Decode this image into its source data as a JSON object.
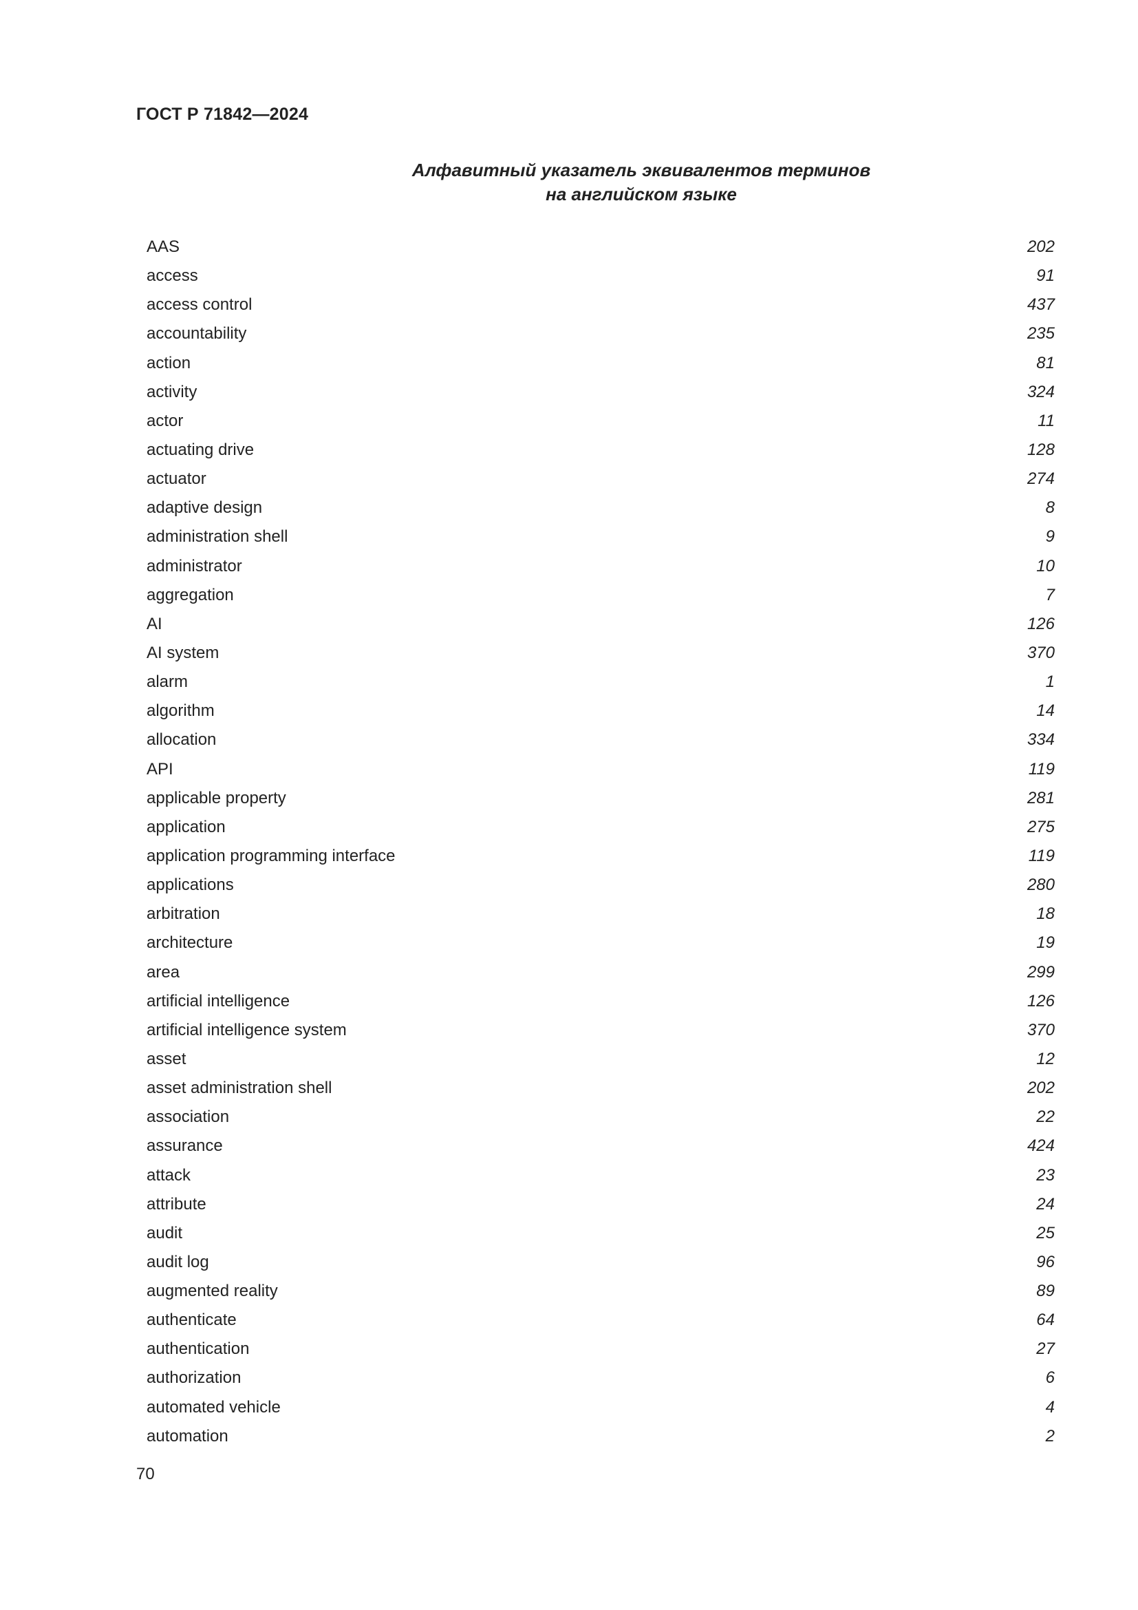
{
  "header": "ГОСТ Р 71842—2024",
  "title": [
    "Алфавитный указатель эквивалентов терминов",
    "на английском языке"
  ],
  "entries": [
    {
      "term": "AAS",
      "page": "202"
    },
    {
      "term": "access",
      "page": "91"
    },
    {
      "term": "access control",
      "page": "437"
    },
    {
      "term": "accountability",
      "page": "235"
    },
    {
      "term": "action",
      "page": "81"
    },
    {
      "term": "activity",
      "page": "324"
    },
    {
      "term": "actor",
      "page": "11"
    },
    {
      "term": "actuating drive",
      "page": "128"
    },
    {
      "term": "actuator",
      "page": "274"
    },
    {
      "term": "adaptive design",
      "page": "8"
    },
    {
      "term": "administration shell",
      "page": "9"
    },
    {
      "term": "administrator",
      "page": "10"
    },
    {
      "term": "aggregation",
      "page": "7"
    },
    {
      "term": "AI",
      "page": "126"
    },
    {
      "term": "AI system",
      "page": "370"
    },
    {
      "term": "alarm",
      "page": "1"
    },
    {
      "term": "algorithm",
      "page": "14"
    },
    {
      "term": "allocation",
      "page": "334"
    },
    {
      "term": "API",
      "page": "119"
    },
    {
      "term": "applicable property",
      "page": "281"
    },
    {
      "term": "application",
      "page": "275"
    },
    {
      "term": "application programming interface",
      "page": "119"
    },
    {
      "term": "applications",
      "page": "280"
    },
    {
      "term": "arbitration",
      "page": "18"
    },
    {
      "term": "architecture",
      "page": "19"
    },
    {
      "term": "area",
      "page": "299"
    },
    {
      "term": "artificial intelligence",
      "page": "126"
    },
    {
      "term": "artificial intelligence system",
      "page": "370"
    },
    {
      "term": "asset",
      "page": "12"
    },
    {
      "term": "asset administration shell",
      "page": "202"
    },
    {
      "term": "association",
      "page": "22"
    },
    {
      "term": "assurance",
      "page": "424"
    },
    {
      "term": "attack",
      "page": "23"
    },
    {
      "term": "attribute",
      "page": "24"
    },
    {
      "term": "audit",
      "page": "25"
    },
    {
      "term": "audit log",
      "page": "96"
    },
    {
      "term": "augmented reality",
      "page": "89"
    },
    {
      "term": "authenticate",
      "page": "64"
    },
    {
      "term": "authentication",
      "page": "27"
    },
    {
      "term": "authorization",
      "page": "6"
    },
    {
      "term": "automated vehicle",
      "page": "4"
    },
    {
      "term": "automation",
      "page": "2"
    }
  ],
  "page_number": "70"
}
